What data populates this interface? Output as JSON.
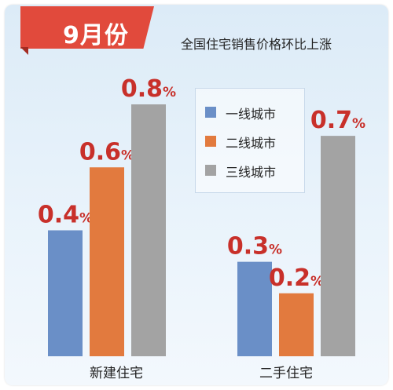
{
  "month_tab": {
    "label": "9月份"
  },
  "chart_data": {
    "type": "bar",
    "title": "全国住宅销售价格环比上涨",
    "categories": [
      "新建住宅",
      "二手住宅"
    ],
    "series": [
      {
        "name": "一线城市",
        "values": [
          0.4,
          0.3
        ],
        "labels": [
          "0.4%",
          "0.3%"
        ]
      },
      {
        "name": "二线城市",
        "values": [
          0.6,
          0.2
        ],
        "labels": [
          "0.6%",
          "0.2%"
        ]
      },
      {
        "name": "三线城市",
        "values": [
          0.8,
          0.7
        ],
        "labels": [
          "0.8%",
          "0.7%"
        ]
      }
    ],
    "ylim": [
      0,
      0.8
    ],
    "grid": false,
    "legend_position": "top-right",
    "colors": [
      "#6a8fc7",
      "#e27a3e",
      "#a3a3a3"
    ],
    "label_color": "#c8302a"
  }
}
